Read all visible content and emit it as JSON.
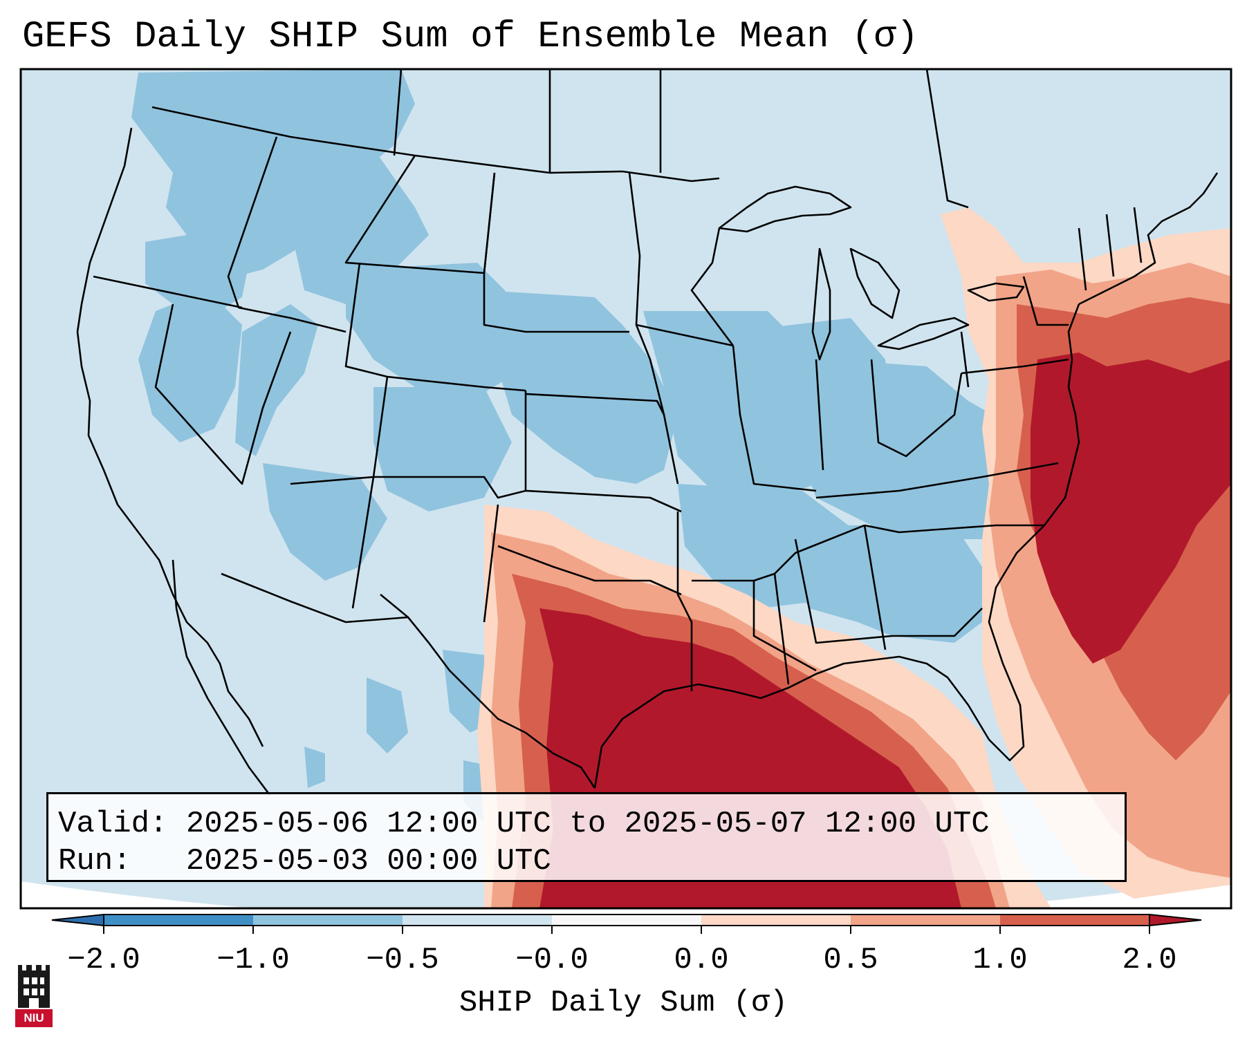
{
  "title": "GEFS Daily SHIP Sum of Ensemble Mean (σ)",
  "info": {
    "valid_label": "Valid:",
    "valid_value": "2025-05-06 12:00 UTC to 2025-05-07 12:00 UTC",
    "run_label": "Run:",
    "run_value": "2025-05-03 00:00 UTC"
  },
  "colorbar": {
    "label": "SHIP Daily Sum (σ)",
    "ticks": [
      "−2.0",
      "−1.0",
      "−0.5",
      "−0.0",
      "0.0",
      "0.5",
      "1.0",
      "2.0"
    ],
    "bins": [
      {
        "color": "#3f8fc6"
      },
      {
        "color": "#90c3de"
      },
      {
        "color": "#d0e4ef"
      },
      {
        "color": "#f7f7f7"
      },
      {
        "color": "#fcd8c5"
      },
      {
        "color": "#f1a488"
      },
      {
        "color": "#d6604d"
      }
    ],
    "extend_low_color": "#2c6fb0",
    "extend_high_color": "#b2182b"
  },
  "map_colors": {
    "background": "#d0e4ef",
    "neg_1_to_0_5": "#90c3de",
    "pos_0_to_0_5": "#fcd8c5",
    "pos_0_5_to_1": "#f1a488",
    "pos_1_to_2": "#d6604d",
    "pos_over_2": "#b2182b",
    "outline": "#000000"
  },
  "logo": {
    "text": "NIU",
    "color": "#c8102e"
  }
}
